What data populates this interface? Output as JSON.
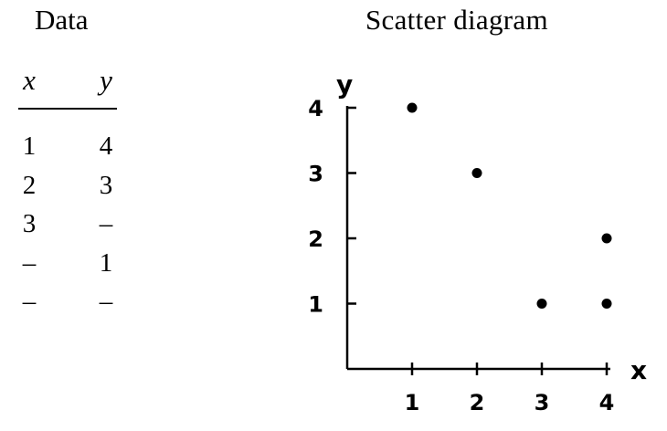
{
  "table": {
    "title": "Data",
    "headers": [
      "x",
      "y"
    ],
    "rows": [
      [
        "1",
        "4"
      ],
      [
        "2",
        "3"
      ],
      [
        "3",
        "–"
      ],
      [
        "–",
        "1"
      ],
      [
        "–",
        "–"
      ]
    ]
  },
  "chart_data": {
    "type": "scatter",
    "title": "Scatter diagram",
    "xlabel": "x",
    "ylabel": "y",
    "xlim": [
      0,
      4
    ],
    "ylim": [
      0,
      4
    ],
    "xticks": [
      1,
      2,
      3,
      4
    ],
    "yticks": [
      1,
      2,
      3,
      4
    ],
    "grid": false,
    "points": [
      {
        "x": 1,
        "y": 4
      },
      {
        "x": 2,
        "y": 3
      },
      {
        "x": 3,
        "y": 1
      },
      {
        "x": 4,
        "y": 2
      },
      {
        "x": 4,
        "y": 1
      }
    ]
  }
}
